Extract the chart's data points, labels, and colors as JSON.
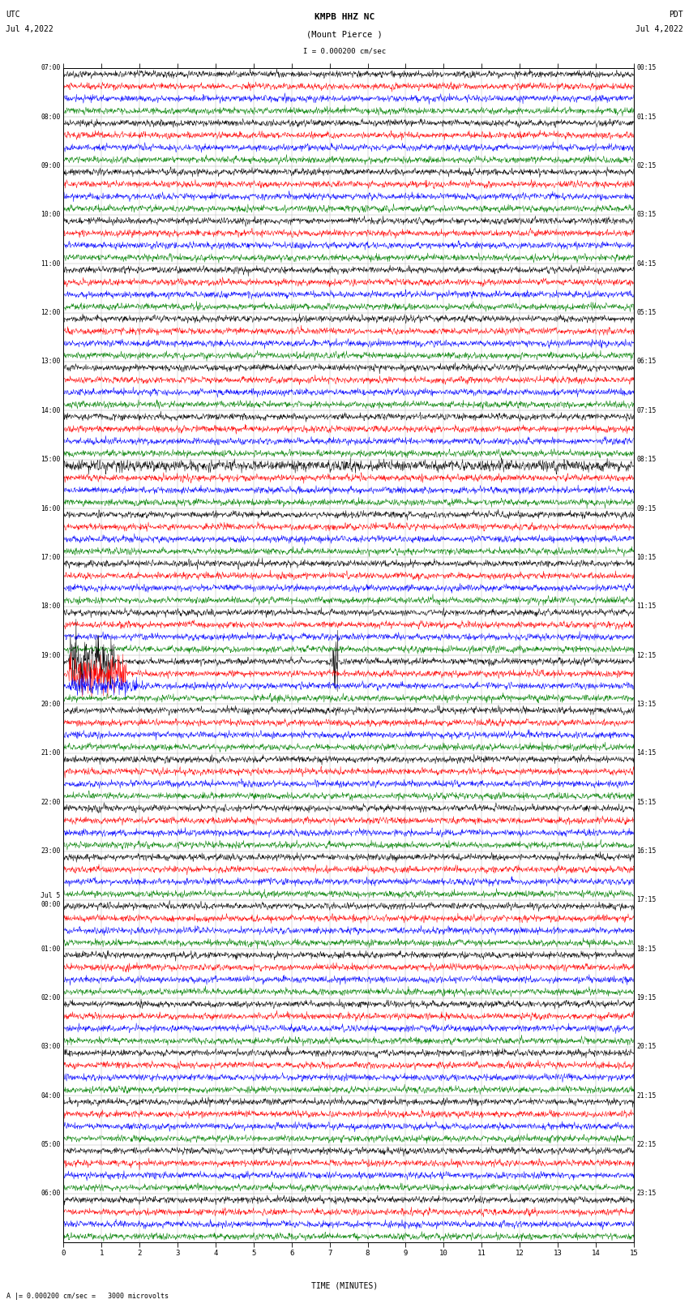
{
  "title_line1": "KMPB HHZ NC",
  "title_line2": "(Mount Pierce )",
  "scale_label": "I = 0.000200 cm/sec",
  "utc_label1": "UTC",
  "utc_label2": "Jul 4,2022",
  "pdt_label1": "PDT",
  "pdt_label2": "Jul 4,2022",
  "bottom_label": "A |= 0.000200 cm/sec =   3000 microvolts",
  "xlabel": "TIME (MINUTES)",
  "left_times": [
    "07:00",
    "08:00",
    "09:00",
    "10:00",
    "11:00",
    "12:00",
    "13:00",
    "14:00",
    "15:00",
    "16:00",
    "17:00",
    "18:00",
    "19:00",
    "20:00",
    "21:00",
    "22:00",
    "23:00",
    "Jul 5\n00:00",
    "01:00",
    "02:00",
    "03:00",
    "04:00",
    "05:00",
    "06:00"
  ],
  "right_times": [
    "00:15",
    "01:15",
    "02:15",
    "03:15",
    "04:15",
    "05:15",
    "06:15",
    "07:15",
    "08:15",
    "09:15",
    "10:15",
    "11:15",
    "12:15",
    "13:15",
    "14:15",
    "15:15",
    "16:15",
    "17:15",
    "18:15",
    "19:15",
    "20:15",
    "21:15",
    "22:15",
    "23:15"
  ],
  "colors": [
    "black",
    "red",
    "blue",
    "green"
  ],
  "n_rows": 96,
  "n_groups": 24,
  "n_points": 1800,
  "duration_minutes": 15,
  "fig_width": 8.5,
  "fig_height": 16.13,
  "bg_color": "white",
  "noise_scale": 0.15,
  "line_width": 0.35,
  "grid_color": "#aaaaaa",
  "grid_lw": 0.3,
  "special_event_row": 48,
  "special_event_row2": 49
}
